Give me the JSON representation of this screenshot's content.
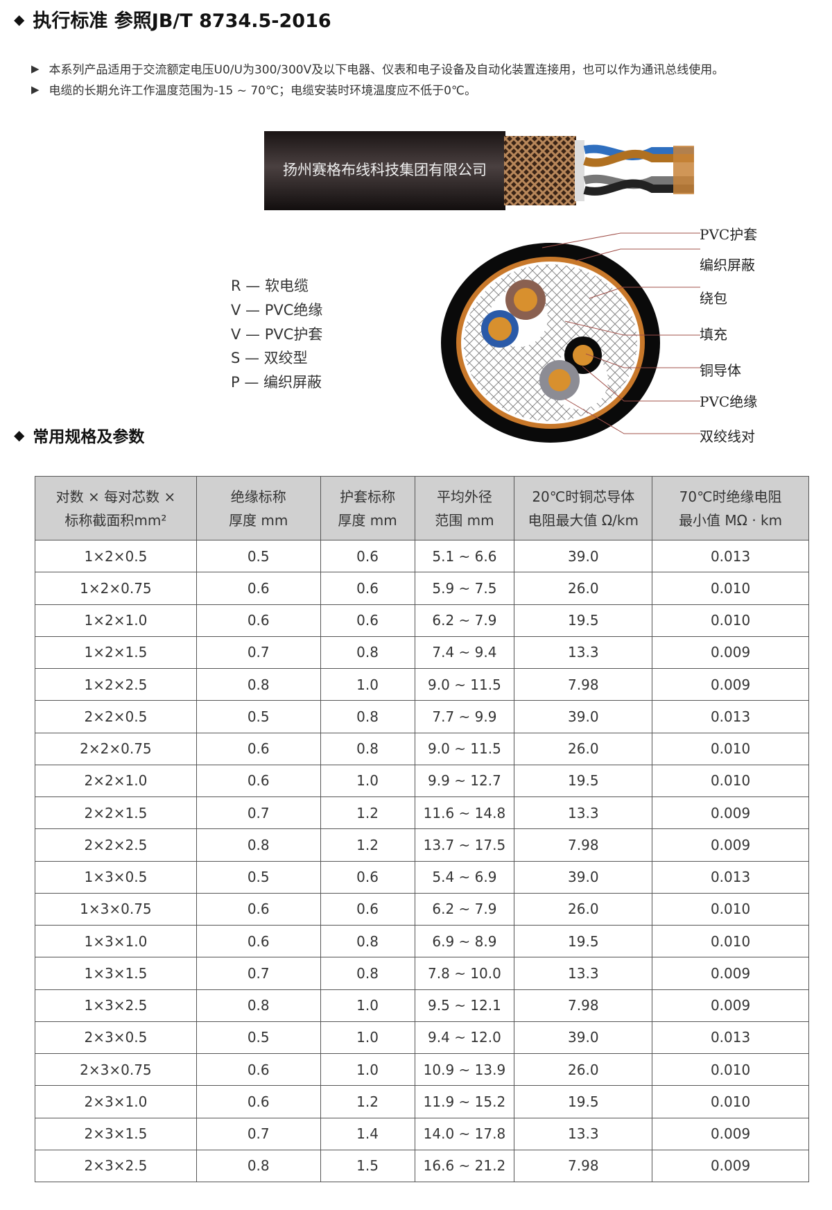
{
  "standard": {
    "title": "执行标准 参照JB/T 8734.5-2016",
    "bullets": [
      "本系列产品适用于交流额定电压U0/U为300/300V及以下电器、仪表和电子设备及自动化装置连接用，也可以作为通讯总线使用。",
      "电缆的长期允许工作温度范围为-15 ~ 70℃；电缆安装时环境温度应不低于0℃。"
    ]
  },
  "cable_image": {
    "brand_text": "扬州赛格布线科技集团有限公司"
  },
  "legend": [
    "R — 软电缆",
    "V — PVC绝缘",
    "V — PVC护套",
    "S — 双绞型",
    "P — 编织屏蔽"
  ],
  "cross_section_labels": [
    "PVC护套",
    "编织屏蔽",
    "绕包",
    "填充",
    "铜导体",
    "PVC绝缘",
    "双绞线对"
  ],
  "specs": {
    "title": "常用规格及参数",
    "headers": [
      [
        "对数 × 每对芯数 ×",
        "标称截面积mm²"
      ],
      [
        "绝缘标称",
        "厚度 mm"
      ],
      [
        "护套标称",
        "厚度 mm"
      ],
      [
        "平均外径",
        "范围 mm"
      ],
      [
        "20℃时铜芯导体",
        "电阻最大值 Ω/km"
      ],
      [
        "70℃时绝缘电阻",
        "最小值 MΩ · km"
      ]
    ],
    "rows": [
      [
        "1×2×0.5",
        "0.5",
        "0.6",
        "5.1 ~ 6.6",
        "39.0",
        "0.013"
      ],
      [
        "1×2×0.75",
        "0.6",
        "0.6",
        "5.9 ~ 7.5",
        "26.0",
        "0.010"
      ],
      [
        "1×2×1.0",
        "0.6",
        "0.6",
        "6.2 ~ 7.9",
        "19.5",
        "0.010"
      ],
      [
        "1×2×1.5",
        "0.7",
        "0.8",
        "7.4 ~ 9.4",
        "13.3",
        "0.009"
      ],
      [
        "1×2×2.5",
        "0.8",
        "1.0",
        "9.0 ~ 11.5",
        "7.98",
        "0.009"
      ],
      [
        "2×2×0.5",
        "0.5",
        "0.8",
        "7.7 ~ 9.9",
        "39.0",
        "0.013"
      ],
      [
        "2×2×0.75",
        "0.6",
        "0.8",
        "9.0 ~ 11.5",
        "26.0",
        "0.010"
      ],
      [
        "2×2×1.0",
        "0.6",
        "1.0",
        "9.9 ~ 12.7",
        "19.5",
        "0.010"
      ],
      [
        "2×2×1.5",
        "0.7",
        "1.2",
        "11.6 ~ 14.8",
        "13.3",
        "0.009"
      ],
      [
        "2×2×2.5",
        "0.8",
        "1.2",
        "13.7 ~ 17.5",
        "7.98",
        "0.009"
      ],
      [
        "1×3×0.5",
        "0.5",
        "0.6",
        "5.4 ~ 6.9",
        "39.0",
        "0.013"
      ],
      [
        "1×3×0.75",
        "0.6",
        "0.6",
        "6.2 ~ 7.9",
        "26.0",
        "0.010"
      ],
      [
        "1×3×1.0",
        "0.6",
        "0.8",
        "6.9 ~ 8.9",
        "19.5",
        "0.010"
      ],
      [
        "1×3×1.5",
        "0.7",
        "0.8",
        "7.8 ~ 10.0",
        "13.3",
        "0.009"
      ],
      [
        "1×3×2.5",
        "0.8",
        "1.0",
        "9.5 ~ 12.1",
        "7.98",
        "0.009"
      ],
      [
        "2×3×0.5",
        "0.5",
        "1.0",
        "9.4 ~ 12.0",
        "39.0",
        "0.013"
      ],
      [
        "2×3×0.75",
        "0.6",
        "1.0",
        "10.9 ~ 13.9",
        "26.0",
        "0.010"
      ],
      [
        "2×3×1.0",
        "0.6",
        "1.2",
        "11.9 ~ 15.2",
        "19.5",
        "0.010"
      ],
      [
        "2×3×1.5",
        "0.7",
        "1.4",
        "14.0 ~ 17.8",
        "13.3",
        "0.009"
      ],
      [
        "2×3×2.5",
        "0.8",
        "1.5",
        "16.6 ~ 21.2",
        "7.98",
        "0.009"
      ]
    ]
  }
}
